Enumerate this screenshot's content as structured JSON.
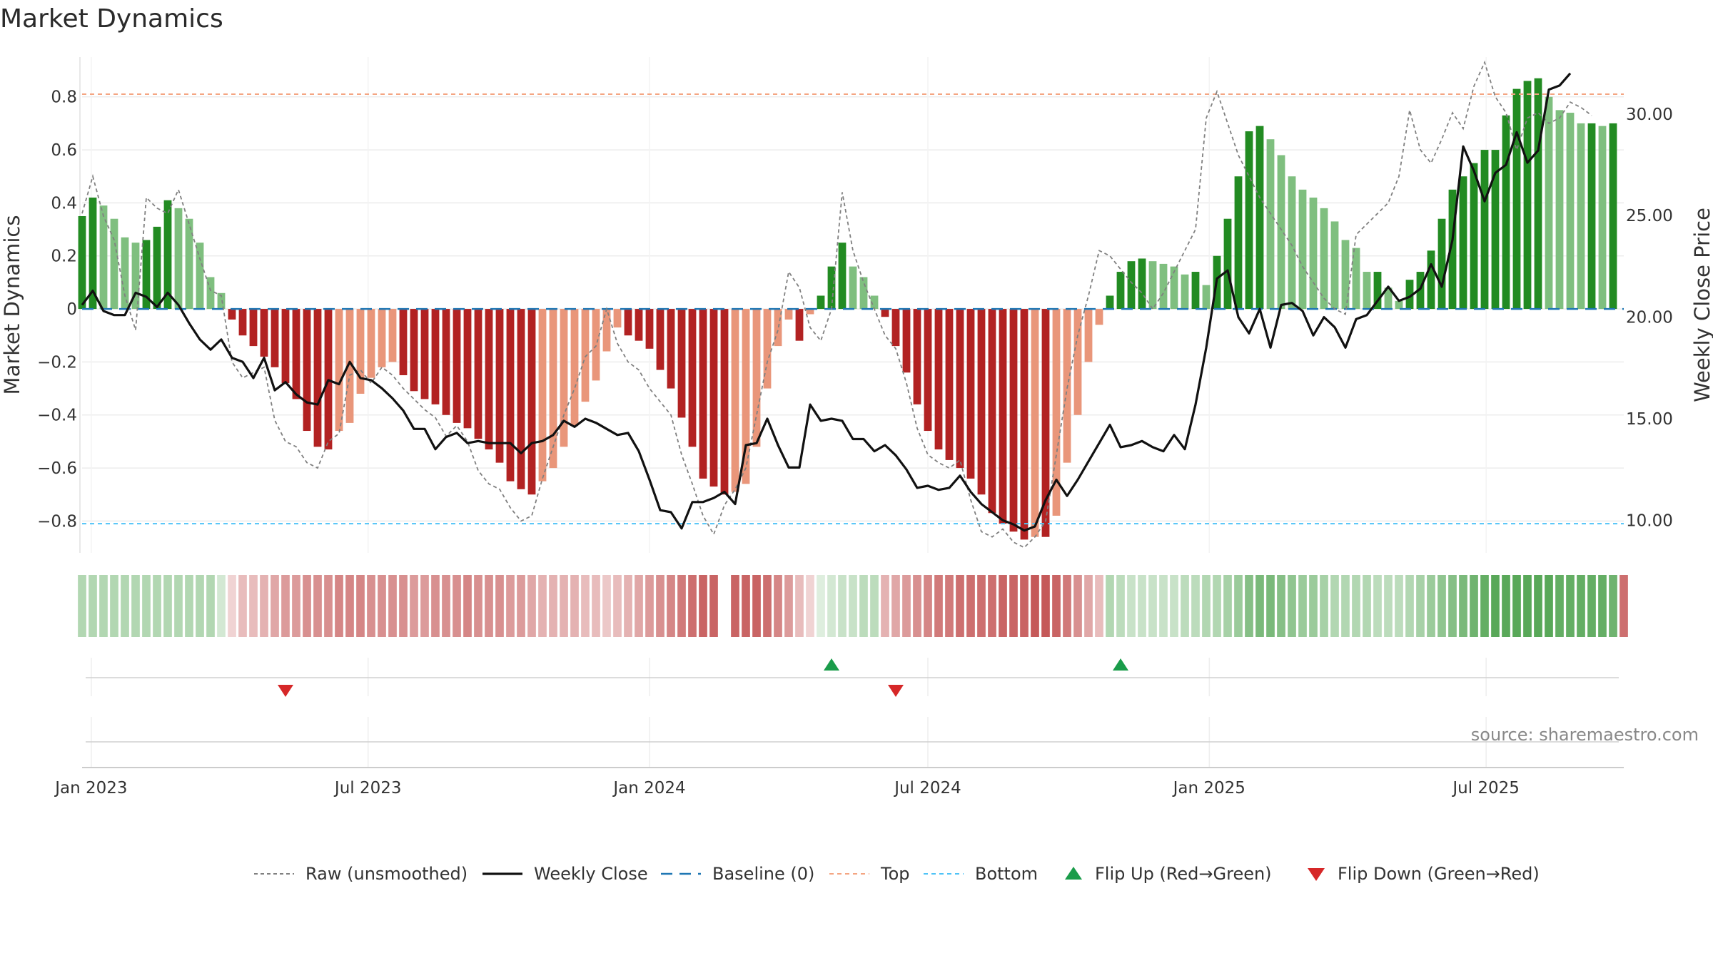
{
  "title": "Market Dynamics",
  "source": "source: sharemaestro.com",
  "colors": {
    "strong_green": "#228b22",
    "light_green": "#7fbf7f",
    "strong_red": "#b22222",
    "light_red": "#e9967a",
    "raw": "#808080",
    "close": "#111111",
    "baseline": "#1f77b4",
    "top": "#f4a582",
    "bottom": "#4fc3f7",
    "flip_up": "#1a9c4a",
    "flip_down": "#d62728"
  },
  "chart_data": {
    "type": "bar",
    "title": "Market Dynamics",
    "ylabel_left": "Market Dynamics",
    "ylabel_right": "Weekly Close Price",
    "ylim_left": [
      -0.92,
      0.95
    ],
    "ylim_right": [
      8.4,
      32.8
    ],
    "y_ticks_left": [
      "0.8",
      "0.6",
      "0.4",
      "0.2",
      "0",
      "−0.2",
      "−0.4",
      "−0.6",
      "−0.8"
    ],
    "y_ticks_right": [
      "30.00",
      "25.00",
      "20.00",
      "15.00",
      "10.00"
    ],
    "x_ticks": [
      "Jan 2023",
      "Jul 2023",
      "Jan 2024",
      "Jul 2024",
      "Jan 2025",
      "Jul 2025"
    ],
    "x_start": "2022-12-26",
    "x_end": "2025-09-29",
    "top_level": 0.81,
    "bottom_level": -0.81,
    "dynamics_start": "2022-12-26",
    "dynamics_interval_days": 7,
    "dynamics": [
      0.35,
      0.42,
      0.39,
      0.34,
      0.27,
      0.25,
      0.26,
      0.31,
      0.41,
      0.38,
      0.34,
      0.25,
      0.12,
      0.06,
      -0.04,
      -0.1,
      -0.14,
      -0.18,
      -0.22,
      -0.28,
      -0.34,
      -0.46,
      -0.52,
      -0.53,
      -0.46,
      -0.43,
      -0.32,
      -0.26,
      -0.22,
      -0.2,
      -0.25,
      -0.31,
      -0.34,
      -0.36,
      -0.4,
      -0.43,
      -0.45,
      -0.49,
      -0.53,
      -0.58,
      -0.65,
      -0.68,
      -0.7,
      -0.65,
      -0.6,
      -0.52,
      -0.44,
      -0.35,
      -0.27,
      -0.16,
      -0.07,
      -0.1,
      -0.12,
      -0.15,
      -0.23,
      -0.3,
      -0.41,
      -0.52,
      -0.64,
      -0.67,
      -0.7,
      -0.69,
      -0.66,
      -0.52,
      -0.3,
      -0.14,
      -0.04,
      -0.12,
      -0.02,
      0.05,
      0.16,
      0.25,
      0.16,
      0.12,
      0.05,
      -0.03,
      -0.14,
      -0.24,
      -0.36,
      -0.46,
      -0.53,
      -0.57,
      -0.6,
      -0.64,
      -0.7,
      -0.77,
      -0.81,
      -0.84,
      -0.87,
      -0.86,
      -0.86,
      -0.78,
      -0.58,
      -0.4,
      -0.2,
      -0.06,
      0.05,
      0.14,
      0.18,
      0.19,
      0.18,
      0.17,
      0.16,
      0.13,
      0.14,
      0.09,
      0.2,
      0.34,
      0.5,
      0.67,
      0.69,
      0.64,
      0.58,
      0.5,
      0.45,
      0.42,
      0.38,
      0.33,
      0.26,
      0.23,
      0.14,
      0.14,
      0.08,
      0.03,
      0.11,
      0.14,
      0.22,
      0.34,
      0.45,
      0.5,
      0.55,
      0.6,
      0.6,
      0.73,
      0.83,
      0.86,
      0.87,
      0.8,
      0.75,
      0.74,
      0.7,
      0.7,
      0.69,
      0.7
    ],
    "raw_dynamics": [
      0.36,
      0.5,
      0.35,
      0.26,
      0.05,
      -0.08,
      0.42,
      0.38,
      0.36,
      0.45,
      0.32,
      0.19,
      0.07,
      0.05,
      -0.2,
      -0.26,
      -0.24,
      -0.22,
      -0.42,
      -0.5,
      -0.52,
      -0.58,
      -0.6,
      -0.5,
      -0.47,
      -0.25,
      -0.23,
      -0.28,
      -0.22,
      -0.25,
      -0.3,
      -0.34,
      -0.38,
      -0.41,
      -0.48,
      -0.44,
      -0.5,
      -0.61,
      -0.66,
      -0.68,
      -0.75,
      -0.8,
      -0.78,
      -0.64,
      -0.52,
      -0.4,
      -0.3,
      -0.18,
      -0.14,
      0.0,
      -0.13,
      -0.2,
      -0.23,
      -0.3,
      -0.35,
      -0.4,
      -0.55,
      -0.66,
      -0.78,
      -0.85,
      -0.74,
      -0.68,
      -0.6,
      -0.4,
      -0.2,
      -0.08,
      0.14,
      0.08,
      -0.07,
      -0.12,
      0.0,
      0.44,
      0.22,
      0.1,
      0.0,
      -0.1,
      -0.15,
      -0.28,
      -0.45,
      -0.55,
      -0.58,
      -0.6,
      -0.57,
      -0.72,
      -0.84,
      -0.86,
      -0.83,
      -0.88,
      -0.9,
      -0.86,
      -0.8,
      -0.55,
      -0.3,
      -0.1,
      0.05,
      0.22,
      0.2,
      0.15,
      0.1,
      0.06,
      0.0,
      0.06,
      0.14,
      0.22,
      0.3,
      0.72,
      0.82,
      0.7,
      0.58,
      0.5,
      0.42,
      0.36,
      0.3,
      0.24,
      0.16,
      0.1,
      0.04,
      0.0,
      -0.02,
      0.28,
      0.32,
      0.36,
      0.4,
      0.5,
      0.75,
      0.6,
      0.55,
      0.64,
      0.74,
      0.68,
      0.84,
      0.93,
      0.8,
      0.74,
      0.6,
      0.72,
      0.74,
      0.7,
      0.72,
      0.78,
      0.76,
      0.73
    ],
    "close_start": "2022-12-26",
    "close_interval_days": 7,
    "close": [
      20.6,
      21.3,
      20.3,
      20.1,
      20.1,
      21.2,
      21.0,
      20.5,
      21.2,
      20.6,
      19.7,
      18.9,
      18.4,
      18.9,
      18.0,
      17.8,
      17.0,
      18.0,
      16.4,
      16.8,
      16.2,
      15.8,
      15.7,
      16.9,
      16.7,
      17.8,
      17.0,
      16.9,
      16.5,
      16.0,
      15.4,
      14.5,
      14.5,
      13.5,
      14.1,
      14.3,
      13.8,
      13.9,
      13.8,
      13.8,
      13.8,
      13.3,
      13.8,
      13.9,
      14.2,
      14.9,
      14.6,
      15.0,
      14.8,
      14.5,
      14.2,
      14.3,
      13.4,
      12.0,
      10.5,
      10.4,
      9.6,
      10.9,
      10.9,
      11.1,
      11.4,
      10.8,
      13.7,
      13.8,
      15.0,
      13.7,
      12.6,
      12.6,
      15.7,
      14.9,
      15.0,
      14.9,
      14.0,
      14.0,
      13.4,
      13.7,
      13.2,
      12.5,
      11.6,
      11.7,
      11.5,
      11.6,
      12.2,
      11.4,
      10.8,
      10.4,
      10.0,
      9.8,
      9.5,
      9.7,
      11.0,
      12.0,
      11.2,
      12.0,
      12.9,
      13.8,
      14.7,
      13.6,
      13.7,
      13.9,
      13.6,
      13.4,
      14.2,
      13.5,
      15.7,
      18.5,
      21.9,
      22.3,
      20.0,
      19.2,
      20.4,
      18.5,
      20.6,
      20.7,
      20.3,
      19.1,
      20.0,
      19.5,
      18.5,
      19.9,
      20.1,
      20.8,
      21.5,
      20.8,
      21.0,
      21.4,
      22.6,
      21.5,
      23.8,
      28.4,
      27.2,
      25.7,
      27.1,
      27.5,
      29.1,
      27.6,
      28.2,
      31.2,
      31.4,
      32.0
    ],
    "direction_strip": [
      0.35,
      0.35,
      0.35,
      0.35,
      0.35,
      0.35,
      0.35,
      0.35,
      0.35,
      0.35,
      0.35,
      0.35,
      0.35,
      0.2,
      0.2,
      0.3,
      0.3,
      0.35,
      0.4,
      0.45,
      0.45,
      0.5,
      0.5,
      0.5,
      0.55,
      0.55,
      0.55,
      0.5,
      0.5,
      0.5,
      0.5,
      0.45,
      0.45,
      0.5,
      0.5,
      0.5,
      0.55,
      0.5,
      0.5,
      0.5,
      0.45,
      0.45,
      0.4,
      0.35,
      0.35,
      0.35,
      0.35,
      0.3,
      0.3,
      0.25,
      0.3,
      0.35,
      0.4,
      0.45,
      0.5,
      0.55,
      0.6,
      0.65,
      0.7,
      0.7,
      null,
      0.7,
      0.7,
      0.7,
      0.65,
      0.55,
      0.45,
      0.3,
      0.2,
      0.15,
      0.2,
      0.25,
      0.25,
      0.3,
      0.3,
      0.35,
      0.4,
      0.45,
      0.5,
      0.55,
      0.6,
      0.6,
      0.65,
      0.65,
      0.65,
      0.65,
      0.7,
      0.7,
      0.7,
      0.75,
      0.75,
      0.7,
      0.6,
      0.5,
      0.4,
      0.3,
      0.35,
      0.3,
      0.25,
      0.25,
      0.25,
      0.25,
      0.25,
      0.3,
      0.3,
      0.35,
      0.35,
      0.4,
      0.45,
      0.55,
      0.6,
      0.6,
      0.55,
      0.5,
      0.45,
      0.45,
      0.4,
      0.35,
      0.35,
      0.35,
      0.35,
      0.3,
      0.3,
      0.3,
      0.35,
      0.4,
      0.45,
      0.5,
      0.55,
      0.6,
      0.65,
      0.7,
      0.75,
      0.75,
      0.75,
      0.75,
      0.75,
      0.75,
      0.7,
      0.7,
      0.7,
      0.7,
      0.7,
      0.65,
      0.65
    ],
    "flips": [
      {
        "date": "2023-05-08",
        "direction": "down"
      },
      {
        "date": "2024-04-29",
        "direction": "up"
      },
      {
        "date": "2024-06-10",
        "direction": "down"
      },
      {
        "date": "2024-11-04",
        "direction": "up"
      }
    ],
    "legend": [
      {
        "label": "Raw (unsmoothed)",
        "style": "raw"
      },
      {
        "label": "Weekly Close",
        "style": "close"
      },
      {
        "label": "Baseline (0)",
        "style": "baseline"
      },
      {
        "label": "Top",
        "style": "top"
      },
      {
        "label": "Bottom",
        "style": "bottom"
      },
      {
        "label": "Flip Up (Red→Green)",
        "style": "flip_up"
      },
      {
        "label": "Flip Down (Green→Red)",
        "style": "flip_down"
      }
    ],
    "legend_position": "bottom",
    "grid": true
  }
}
